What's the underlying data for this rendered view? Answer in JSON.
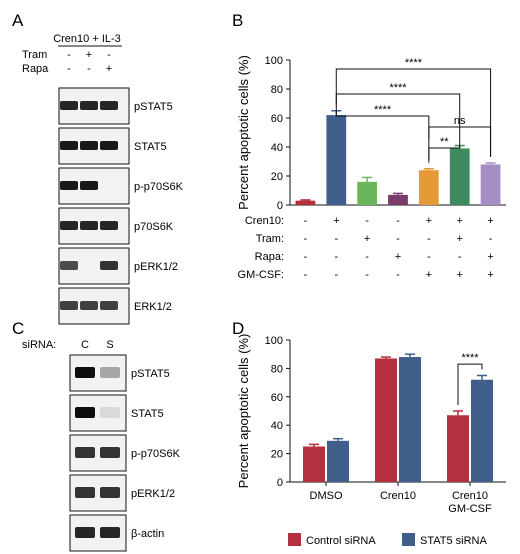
{
  "panels": {
    "A": {
      "letter": "A",
      "header": "Cren10 + IL-3",
      "rows": [
        {
          "label": "Tram",
          "signs": [
            "-",
            "+",
            "-"
          ]
        },
        {
          "label": "Rapa",
          "signs": [
            "-",
            "-",
            "+"
          ]
        }
      ],
      "blots": [
        {
          "label": "pSTAT5",
          "lanes": [
            0.85,
            0.85,
            0.85
          ]
        },
        {
          "label": "STAT5",
          "lanes": [
            0.9,
            0.9,
            0.9
          ]
        },
        {
          "label": "p-p70S6K",
          "lanes": [
            0.9,
            0.9,
            0.0
          ]
        },
        {
          "label": "p70S6K",
          "lanes": [
            0.85,
            0.85,
            0.85
          ]
        },
        {
          "label": "pERK1/2",
          "lanes": [
            0.7,
            0.0,
            0.8
          ]
        },
        {
          "label": "ERK1/2",
          "lanes": [
            0.75,
            0.75,
            0.75
          ]
        }
      ]
    },
    "B": {
      "letter": "B",
      "chart_data": {
        "type": "bar",
        "ylabel": "Percent apoptotic cells (%)",
        "ylim": [
          0,
          100
        ],
        "yticks": [
          0,
          20,
          40,
          60,
          80,
          100
        ],
        "values": [
          3,
          62,
          16,
          7,
          24,
          39,
          28
        ],
        "errors": [
          0.5,
          3,
          3,
          1,
          1,
          2,
          1
        ],
        "colors": [
          "#b5303f",
          "#3f5f8a",
          "#6bb55a",
          "#7a3a6a",
          "#e69a35",
          "#3f8a5f",
          "#a58ec5"
        ],
        "conditions": [
          {
            "label": "Cren10:",
            "signs": [
              "-",
              "+",
              "-",
              "-",
              "+",
              "+",
              "+"
            ]
          },
          {
            "label": "Tram:",
            "signs": [
              "-",
              "-",
              "+",
              "-",
              "-",
              "+",
              "-"
            ]
          },
          {
            "label": "Rapa:",
            "signs": [
              "-",
              "-",
              "-",
              "+",
              "-",
              "-",
              "+"
            ]
          },
          {
            "label": "GM-CSF:",
            "signs": [
              "-",
              "-",
              "-",
              "-",
              "+",
              "+",
              "+"
            ]
          }
        ],
        "comparisons": [
          {
            "from": 1,
            "to": 6,
            "label": "****"
          },
          {
            "from": 1,
            "to": 5,
            "label": "****"
          },
          {
            "from": 1,
            "to": 4,
            "label": "****"
          },
          {
            "from": 4,
            "to": 6,
            "label": "ns"
          },
          {
            "from": 4,
            "to": 5,
            "label": "**"
          }
        ]
      }
    },
    "C": {
      "letter": "C",
      "header_label": "siRNA:",
      "lane_labels": [
        "C",
        "S"
      ],
      "blots": [
        {
          "label": "pSTAT5",
          "lanes": [
            0.95,
            0.35
          ]
        },
        {
          "label": "STAT5",
          "lanes": [
            0.95,
            0.15
          ]
        },
        {
          "label": "p-p70S6K",
          "lanes": [
            0.8,
            0.8
          ]
        },
        {
          "label": "pERK1/2",
          "lanes": [
            0.8,
            0.8
          ]
        },
        {
          "label": "β-actin",
          "lanes": [
            0.85,
            0.85
          ]
        }
      ]
    },
    "D": {
      "letter": "D",
      "chart_data": {
        "type": "bar",
        "ylabel": "Percent apoptotic cells (%)",
        "ylim": [
          0,
          100
        ],
        "yticks": [
          0,
          20,
          40,
          60,
          80,
          100
        ],
        "categories": [
          [
            "DMSO"
          ],
          [
            "Cren10"
          ],
          [
            "Cren10",
            "GM-CSF"
          ]
        ],
        "series": [
          {
            "name": "Control siRNA",
            "color": "#b5303f",
            "values": [
              25,
              87,
              47
            ],
            "errors": [
              1.5,
              1,
              3
            ]
          },
          {
            "name": "STAT5 siRNA",
            "color": "#3f5f8a",
            "values": [
              29,
              88,
              72
            ],
            "errors": [
              1.5,
              2,
              3
            ]
          }
        ],
        "comparisons": [
          {
            "category": 2,
            "label": "****"
          }
        ],
        "legend_position": "bottom"
      }
    }
  }
}
